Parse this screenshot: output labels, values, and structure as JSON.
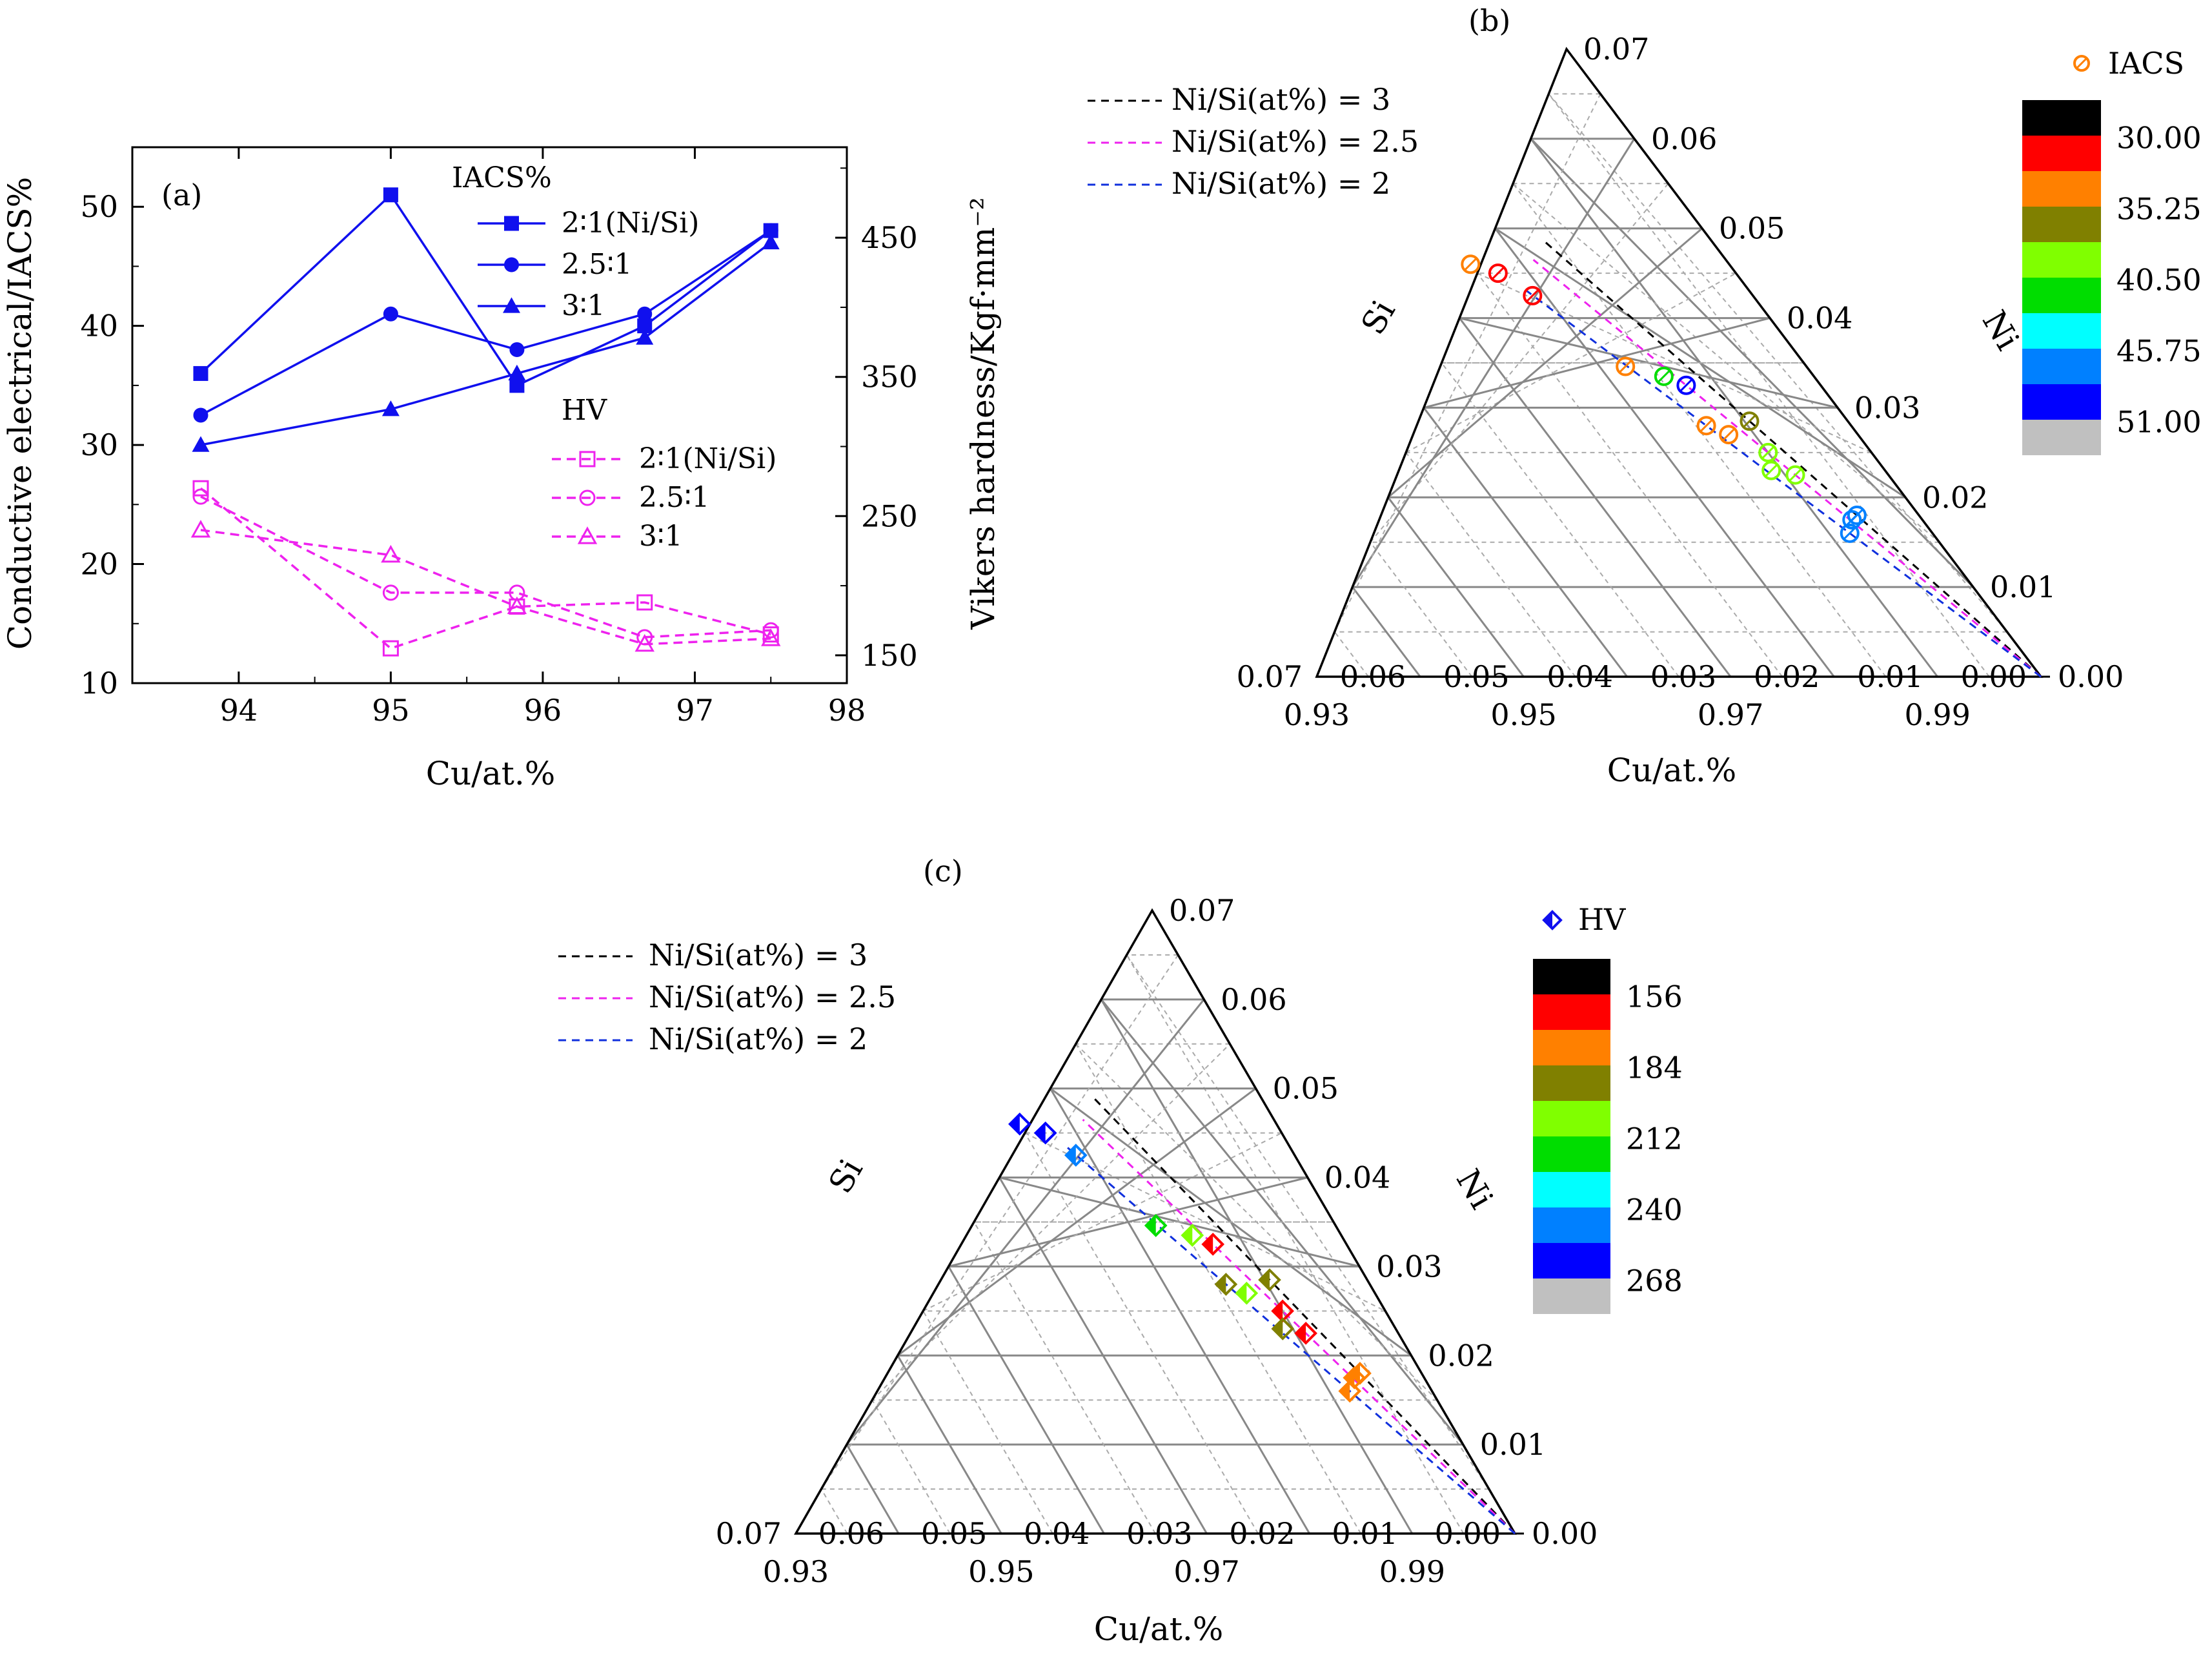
{
  "chart_data": [
    {
      "panel": "(a)",
      "type": "line",
      "xlabel": "Cu/at.%",
      "ylabel": "Conductive electrical/IACS%",
      "ylabel_right": "Vikers hardness/Kgf·mm⁻²",
      "xlim": [
        93.3,
        98
      ],
      "ylim": [
        10,
        55
      ],
      "ylim_right": [
        130,
        515
      ],
      "x_ticks": [
        "94",
        "95",
        "96",
        "97",
        "98"
      ],
      "y_ticks": [
        "10",
        "20",
        "30",
        "40",
        "50"
      ],
      "y_right_ticks": [
        "150",
        "250",
        "350",
        "450"
      ],
      "legend_iacs_title": "IACS%",
      "legend_hv_title": "HV",
      "colors": {
        "iacs": "#1010ee",
        "hv": "#ee22ee"
      },
      "series": [
        {
          "name": "2∶1(Ni/Si)",
          "group": "IACS",
          "marker": "square",
          "style": "solid",
          "axis": "left",
          "x": [
            93.75,
            95.0,
            95.83,
            96.67,
            97.5
          ],
          "values": [
            36,
            51,
            35,
            40,
            48
          ]
        },
        {
          "name": "2.5∶1",
          "group": "IACS",
          "marker": "circle",
          "style": "solid",
          "axis": "left",
          "x": [
            93.75,
            95.0,
            95.83,
            96.67,
            97.5
          ],
          "values": [
            32.5,
            41,
            38,
            41,
            48
          ]
        },
        {
          "name": "3∶1",
          "group": "IACS",
          "marker": "triangle",
          "style": "solid",
          "axis": "left",
          "x": [
            93.75,
            95.0,
            95.83,
            96.67,
            97.5
          ],
          "values": [
            30,
            33,
            36,
            39,
            47
          ]
        },
        {
          "name": "2∶1(Ni/Si)",
          "group": "HV",
          "marker": "square-open",
          "style": "dashed",
          "axis": "right",
          "x": [
            93.75,
            95.0,
            95.83,
            96.67,
            97.5
          ],
          "values": [
            270,
            155,
            185,
            188,
            165
          ]
        },
        {
          "name": "2.5∶1",
          "group": "HV",
          "marker": "circle-open",
          "style": "dashed",
          "axis": "right",
          "x": [
            93.75,
            95.0,
            95.83,
            96.67,
            97.5
          ],
          "values": [
            264,
            195,
            195,
            163,
            168
          ]
        },
        {
          "name": "3∶1",
          "group": "HV",
          "marker": "triangle-open",
          "style": "dashed",
          "axis": "right",
          "x": [
            93.75,
            95.0,
            95.83,
            96.67,
            97.5
          ],
          "values": [
            240,
            222,
            185,
            158,
            162
          ]
        }
      ]
    },
    {
      "panel": "(b)",
      "type": "scatter",
      "subtype": "ternary",
      "bottom_axis_label": "Cu/at.%",
      "left_axis_label": "Si",
      "right_axis_label": "Ni",
      "cu_ticks": [
        "0.93",
        "0.95",
        "0.97",
        "0.99"
      ],
      "si_ticks": [
        "0.00",
        "0.01",
        "0.02",
        "0.03",
        "0.04",
        "0.05",
        "0.06",
        "0.07"
      ],
      "ni_ticks": [
        "0.07",
        "0.06",
        "0.05",
        "0.04",
        "0.03",
        "0.02",
        "0.01",
        "0.00"
      ],
      "ratio_lines": [
        {
          "label": "Ni/Si(at%) = 3",
          "color": "#000000",
          "ratio": 3
        },
        {
          "label": "Ni/Si(at%) = 2.5",
          "color": "#ee22ee",
          "ratio": 2.5
        },
        {
          "label": "Ni/Si(at%) = 2",
          "color": "#1030dd",
          "ratio": 2
        }
      ],
      "marker_legend": "IACS",
      "colorbar": {
        "colors": [
          "#000000",
          "#ff0000",
          "#ff8000",
          "#808000",
          "#80ff00",
          "#00dd00",
          "#00ffff",
          "#0080ff",
          "#0000ff",
          "#c0c0c0"
        ],
        "labels": [
          "30.00",
          "35.25",
          "40.50",
          "45.75",
          "51.00"
        ]
      },
      "points": [
        {
          "si": 0.0213,
          "ni": 0.0425,
          "value": 30.5,
          "color": "#ff0000"
        },
        {
          "si": 0.023,
          "ni": 0.045,
          "value": 31.0,
          "color": "#ff0000"
        },
        {
          "si": 0.025,
          "ni": 0.046,
          "value": 33.0,
          "color": "#ff8000"
        },
        {
          "si": 0.0175,
          "ni": 0.0346,
          "value": 33.0,
          "color": "#ff8000"
        },
        {
          "si": 0.0145,
          "ni": 0.0335,
          "value": 38.0,
          "color": "#00dd00"
        },
        {
          "si": 0.013,
          "ni": 0.0325,
          "value": 51.0,
          "color": "#0000ff"
        },
        {
          "si": 0.014,
          "ni": 0.028,
          "value": 32.5,
          "color": "#ff8000"
        },
        {
          "si": 0.0125,
          "ni": 0.027,
          "value": 35.5,
          "color": "#ff8000"
        },
        {
          "si": 0.0095,
          "ni": 0.0285,
          "value": 36.0,
          "color": "#808000"
        },
        {
          "si": 0.01,
          "ni": 0.025,
          "value": 41.0,
          "color": "#80ff00"
        },
        {
          "si": 0.011,
          "ni": 0.023,
          "value": 41.0,
          "color": "#80ff00"
        },
        {
          "si": 0.009,
          "ni": 0.0225,
          "value": 40.0,
          "color": "#80ff00"
        },
        {
          "si": 0.0068,
          "ni": 0.0175,
          "value": 48.0,
          "color": "#0080ff"
        },
        {
          "si": 0.006,
          "ni": 0.018,
          "value": 47.0,
          "color": "#0080ff"
        },
        {
          "si": 0.008,
          "ni": 0.016,
          "value": 48.0,
          "color": "#0080ff"
        }
      ]
    },
    {
      "panel": "(c)",
      "type": "scatter",
      "subtype": "ternary",
      "bottom_axis_label": "Cu/at.%",
      "left_axis_label": "Si",
      "right_axis_label": "Ni",
      "cu_ticks": [
        "0.93",
        "0.95",
        "0.97",
        "0.99"
      ],
      "si_ticks": [
        "0.00",
        "0.01",
        "0.02",
        "0.03",
        "0.04",
        "0.05",
        "0.06",
        "0.07"
      ],
      "ni_ticks": [
        "0.07",
        "0.06",
        "0.05",
        "0.04",
        "0.03",
        "0.02",
        "0.01",
        "0.00"
      ],
      "ratio_lines": [
        {
          "label": "Ni/Si(at%) = 3",
          "color": "#000000",
          "ratio": 3
        },
        {
          "label": "Ni/Si(at%) = 2.5",
          "color": "#ee22ee",
          "ratio": 2.5
        },
        {
          "label": "Ni/Si(at%) = 2",
          "color": "#1030dd",
          "ratio": 2
        }
      ],
      "marker_legend": "HV",
      "colorbar": {
        "colors": [
          "#000000",
          "#ff0000",
          "#ff8000",
          "#808000",
          "#80ff00",
          "#00dd00",
          "#00ffff",
          "#0080ff",
          "#0000ff",
          "#c0c0c0"
        ],
        "labels": [
          "156",
          "184",
          "212",
          "240",
          "268"
        ]
      },
      "points": [
        {
          "si": 0.0213,
          "ni": 0.0425,
          "value": 245,
          "color": "#0080ff"
        },
        {
          "si": 0.023,
          "ni": 0.045,
          "value": 264,
          "color": "#0000ff"
        },
        {
          "si": 0.025,
          "ni": 0.046,
          "value": 270,
          "color": "#0000ff"
        },
        {
          "si": 0.0175,
          "ni": 0.0346,
          "value": 215,
          "color": "#00dd00"
        },
        {
          "si": 0.0145,
          "ni": 0.0335,
          "value": 212,
          "color": "#80ff00"
        },
        {
          "si": 0.013,
          "ni": 0.0325,
          "value": 155,
          "color": "#ff0000"
        },
        {
          "si": 0.014,
          "ni": 0.028,
          "value": 195,
          "color": "#808000"
        },
        {
          "si": 0.0125,
          "ni": 0.027,
          "value": 205,
          "color": "#80ff00"
        },
        {
          "si": 0.0095,
          "ni": 0.0285,
          "value": 190,
          "color": "#808000"
        },
        {
          "si": 0.01,
          "ni": 0.025,
          "value": 158,
          "color": "#ff0000"
        },
        {
          "si": 0.011,
          "ni": 0.023,
          "value": 185,
          "color": "#808000"
        },
        {
          "si": 0.009,
          "ni": 0.0225,
          "value": 157,
          "color": "#ff0000"
        },
        {
          "si": 0.0068,
          "ni": 0.0175,
          "value": 168,
          "color": "#ff8000"
        },
        {
          "si": 0.006,
          "ni": 0.018,
          "value": 165,
          "color": "#ff8000"
        },
        {
          "si": 0.008,
          "ni": 0.016,
          "value": 170,
          "color": "#ff8000"
        }
      ]
    }
  ]
}
